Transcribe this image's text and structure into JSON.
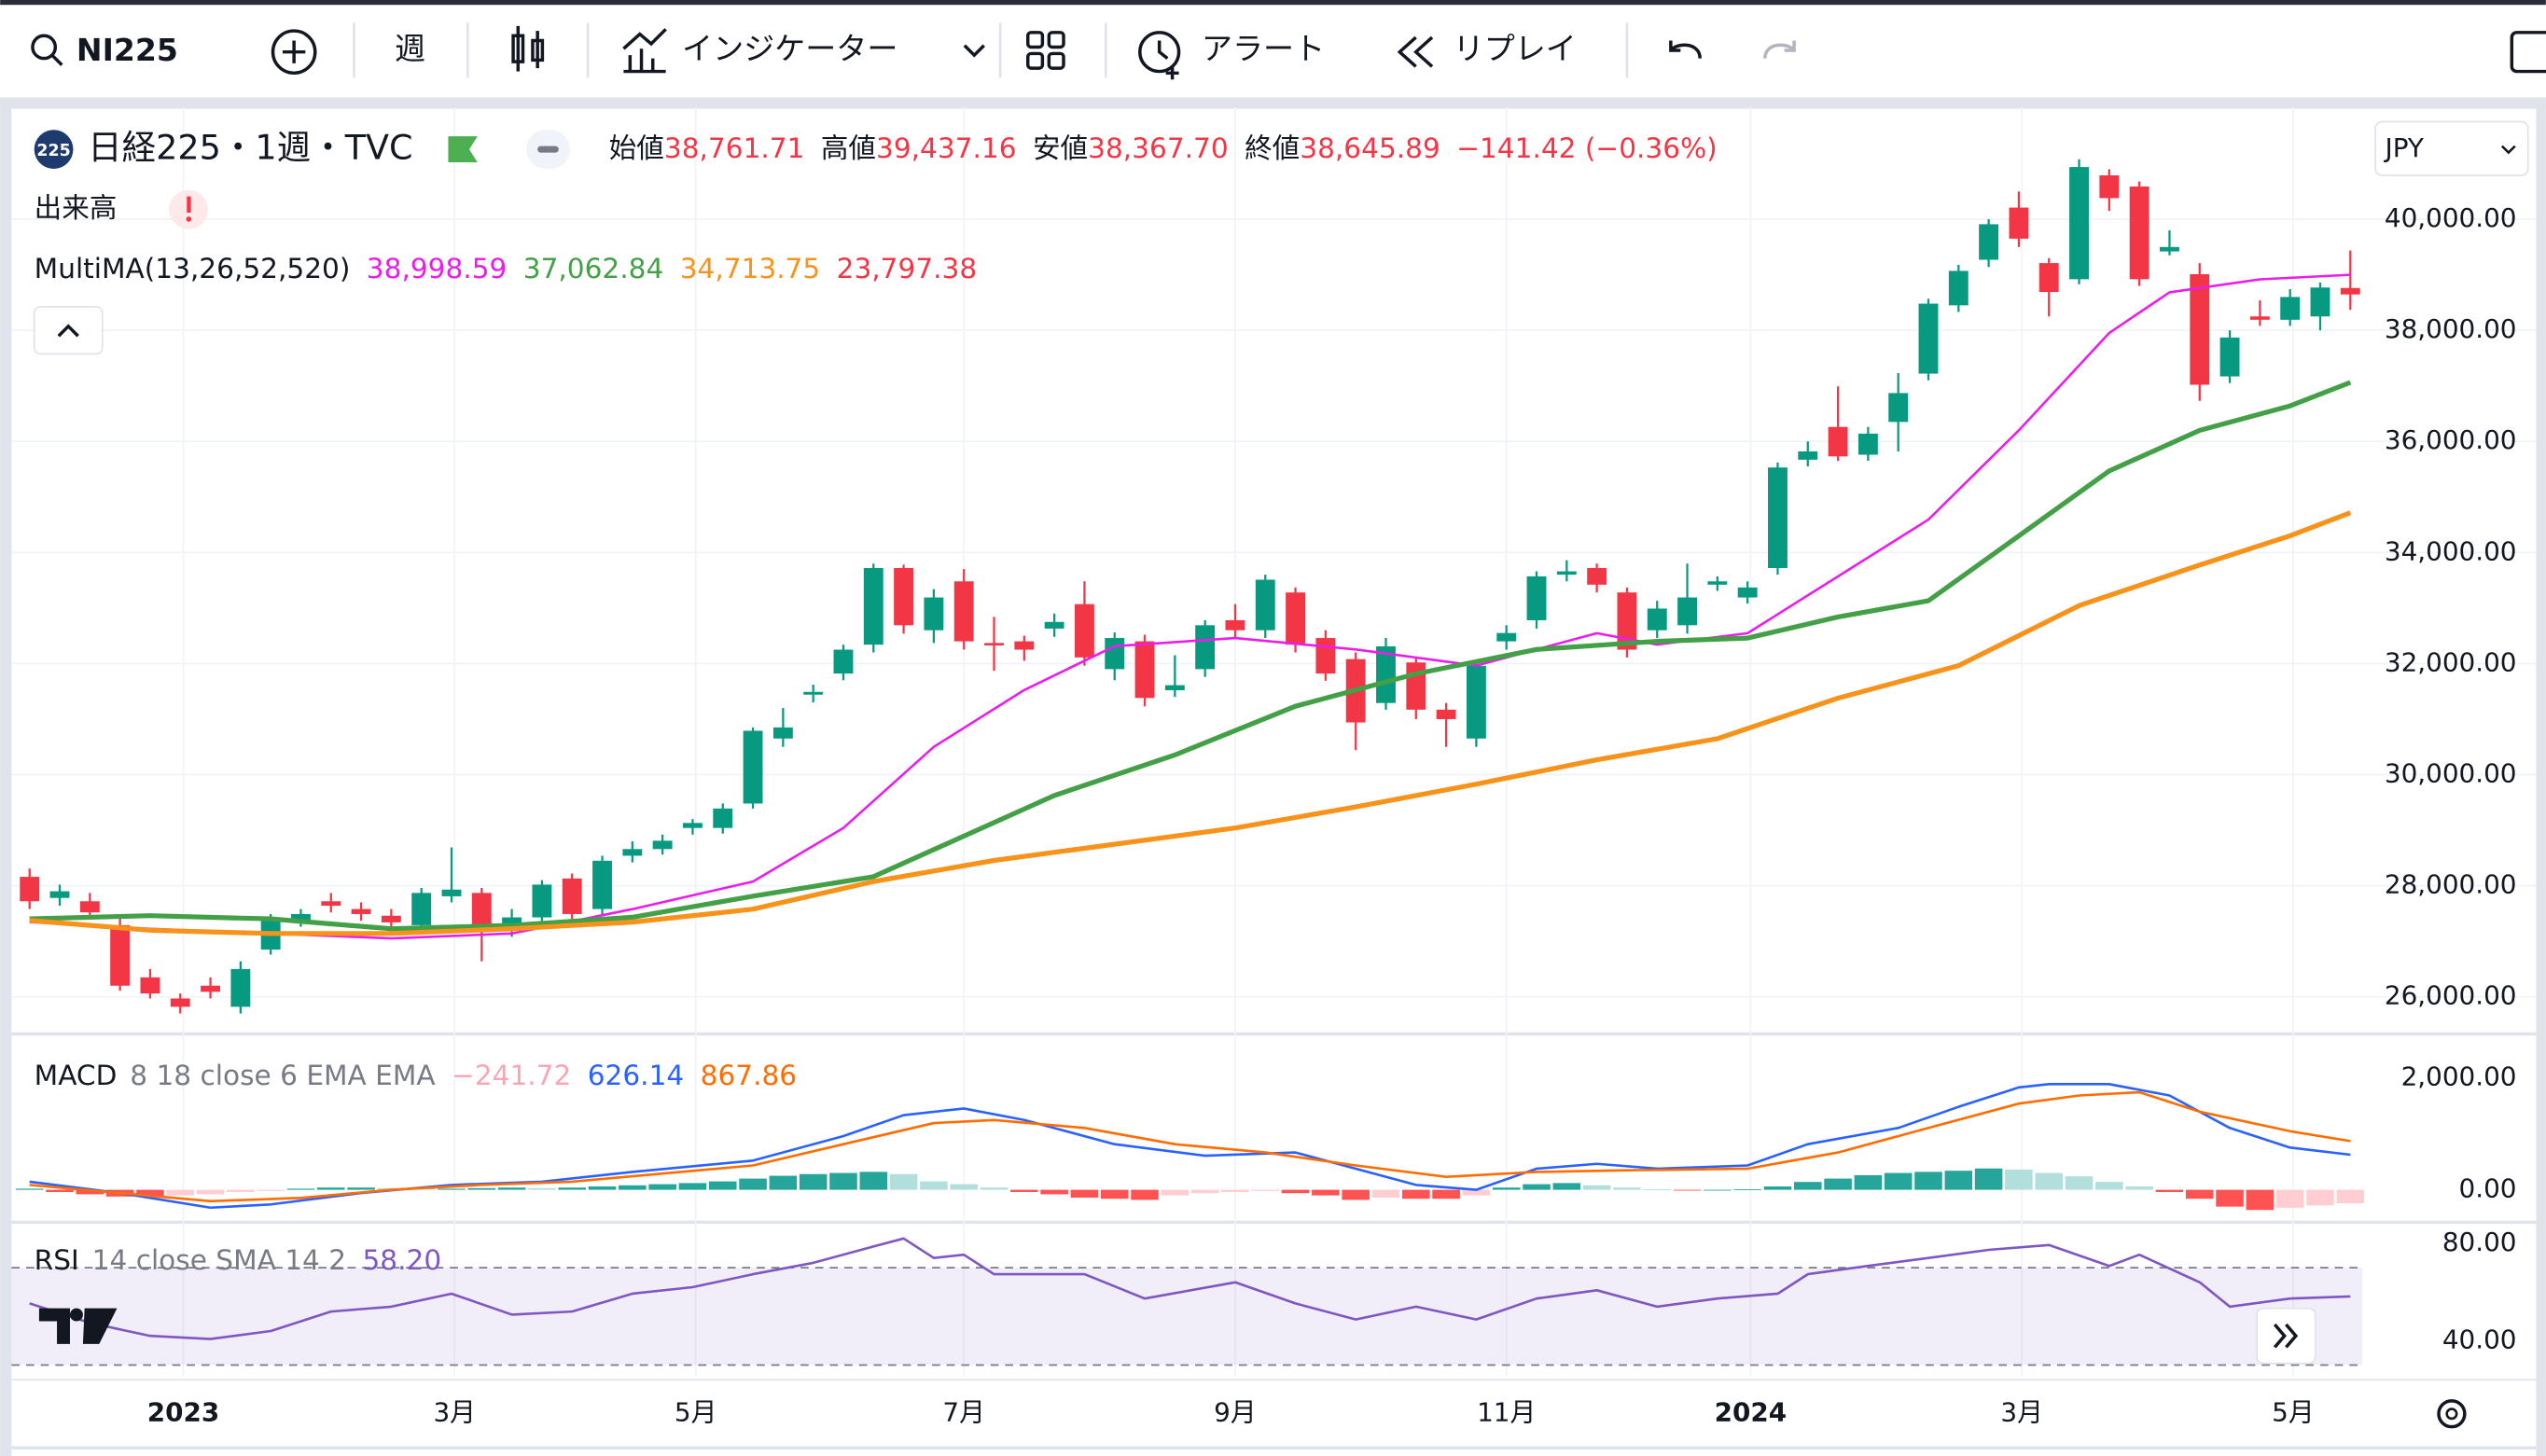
{
  "toolbar": {
    "symbol": "NI225",
    "interval": "週",
    "indicators": "インジケーター",
    "alert": "アラート",
    "replay": "リプレイ"
  },
  "chart_data": [
    {
      "type": "candlestick",
      "badge": "225",
      "title": "日経225・1週・TVC",
      "ohlc": [
        {
          "name": "始値",
          "value": "38,761.71"
        },
        {
          "name": "高値",
          "value": "39,437.16"
        },
        {
          "name": "安値",
          "value": "38,367.70"
        },
        {
          "name": "終値",
          "value": "38,645.89"
        }
      ],
      "change": "−141.42 (−0.36%)",
      "volume_label": "出来高",
      "currency": "JPY",
      "ma_title": "MultiMA(13,26,52,520)",
      "up_color": "#089981",
      "down_color": "#f23645",
      "grid": true,
      "xlim": [
        -0.6,
        77.4
      ],
      "xticks": [
        {
          "value": 5.1,
          "label": "2023"
        },
        {
          "value": 14.1,
          "label": "3月"
        },
        {
          "value": 22.1,
          "label": "5月"
        },
        {
          "value": 31.0,
          "label": "7月"
        },
        {
          "value": 40.0,
          "label": "9月"
        },
        {
          "value": 49.0,
          "label": "11月"
        },
        {
          "value": 57.1,
          "label": "2024"
        },
        {
          "value": 66.1,
          "label": "3月"
        },
        {
          "value": 75.1,
          "label": "5月"
        }
      ],
      "ylim": [
        25360,
        41960
      ],
      "yticks": [
        {
          "value": 40000,
          "label": "40,000.00"
        },
        {
          "value": 38000,
          "label": "38,000.00"
        },
        {
          "value": 36000,
          "label": "36,000.00"
        },
        {
          "value": 34000,
          "label": "34,000.00"
        },
        {
          "value": 32000,
          "label": "32,000.00"
        },
        {
          "value": 30000,
          "label": "30,000.00"
        },
        {
          "value": 28000,
          "label": "28,000.00"
        },
        {
          "value": 26000,
          "label": "26,000.00"
        }
      ],
      "candles": [
        [
          28160,
          28310,
          27580,
          27720
        ],
        [
          27780,
          28020,
          27640,
          27900
        ],
        [
          27720,
          27870,
          27430,
          27520
        ],
        [
          27290,
          27430,
          26110,
          26200
        ],
        [
          26350,
          26500,
          25970,
          26060
        ],
        [
          25970,
          26060,
          25700,
          25820
        ],
        [
          26200,
          26350,
          25970,
          26090
        ],
        [
          25820,
          26640,
          25700,
          26500
        ],
        [
          26850,
          27490,
          26760,
          27370
        ],
        [
          27340,
          27580,
          27260,
          27490
        ],
        [
          27720,
          27870,
          27520,
          27640
        ],
        [
          27580,
          27700,
          27370,
          27490
        ],
        [
          27460,
          27580,
          27200,
          27340
        ],
        [
          27290,
          27960,
          27200,
          27870
        ],
        [
          27810,
          28690,
          27700,
          27930
        ],
        [
          27870,
          27960,
          26640,
          27290
        ],
        [
          27230,
          27580,
          27080,
          27430
        ],
        [
          27430,
          28100,
          27340,
          28020
        ],
        [
          28130,
          28220,
          27400,
          27490
        ],
        [
          27580,
          28540,
          27490,
          28450
        ],
        [
          28540,
          28800,
          28420,
          28660
        ],
        [
          28660,
          28920,
          28560,
          28810
        ],
        [
          29040,
          29200,
          28920,
          29130
        ],
        [
          29040,
          29480,
          28940,
          29390
        ],
        [
          29480,
          30850,
          29390,
          30790
        ],
        [
          30650,
          31200,
          30500,
          30850
        ],
        [
          31440,
          31620,
          31300,
          31490
        ],
        [
          31820,
          32340,
          31700,
          32250
        ],
        [
          32340,
          33800,
          32200,
          33720
        ],
        [
          33720,
          33780,
          32540,
          32690
        ],
        [
          32600,
          33340,
          32370,
          33190
        ],
        [
          33480,
          33700,
          32250,
          32400
        ],
        [
          32370,
          32840,
          31870,
          32340
        ],
        [
          32400,
          32500,
          32050,
          32250
        ],
        [
          32630,
          32900,
          32480,
          32750
        ],
        [
          33070,
          33480,
          31960,
          32110
        ],
        [
          31900,
          32560,
          31700,
          32460
        ],
        [
          32400,
          32520,
          31230,
          31380
        ],
        [
          31520,
          32150,
          31400,
          31610
        ],
        [
          31900,
          32780,
          31760,
          32690
        ],
        [
          32780,
          33070,
          32460,
          32600
        ],
        [
          32600,
          33600,
          32460,
          33510
        ],
        [
          33280,
          33370,
          32200,
          32340
        ],
        [
          32460,
          32600,
          31690,
          31820
        ],
        [
          32080,
          32200,
          30440,
          30940
        ],
        [
          31290,
          32460,
          31170,
          32310
        ],
        [
          32020,
          32110,
          31000,
          31170
        ],
        [
          31170,
          31290,
          30500,
          31000
        ],
        [
          30650,
          32050,
          30500,
          31960
        ],
        [
          32400,
          32690,
          32250,
          32550
        ],
        [
          32780,
          33660,
          32630,
          33570
        ],
        [
          33600,
          33860,
          33480,
          33660
        ],
        [
          33720,
          33800,
          33280,
          33420
        ],
        [
          33280,
          33370,
          32110,
          32250
        ],
        [
          32600,
          33130,
          32460,
          32990
        ],
        [
          32690,
          33800,
          32540,
          33190
        ],
        [
          33420,
          33570,
          33310,
          33480
        ],
        [
          33190,
          33480,
          33080,
          33370
        ],
        [
          33720,
          35620,
          33600,
          35530
        ],
        [
          35670,
          36000,
          35550,
          35820
        ],
        [
          36260,
          36990,
          35650,
          35730
        ],
        [
          35760,
          36260,
          35650,
          36140
        ],
        [
          36350,
          37230,
          35820,
          36870
        ],
        [
          37220,
          38570,
          37100,
          38480
        ],
        [
          38450,
          39180,
          38330,
          39070
        ],
        [
          39270,
          40000,
          39140,
          39910
        ],
        [
          40210,
          40500,
          39500,
          39650
        ],
        [
          39210,
          39300,
          38250,
          38690
        ],
        [
          38920,
          41080,
          38830,
          40940
        ],
        [
          40790,
          40900,
          40150,
          40380
        ],
        [
          40590,
          40680,
          38800,
          38920
        ],
        [
          39420,
          39800,
          39350,
          39500
        ],
        [
          39010,
          39210,
          36730,
          37020
        ],
        [
          37170,
          38000,
          37050,
          37870
        ],
        [
          38250,
          38540,
          38080,
          38190
        ],
        [
          38190,
          38740,
          38080,
          38600
        ],
        [
          38250,
          38860,
          38000,
          38770
        ],
        [
          38761.71,
          39437.16,
          38367.7,
          38645.89
        ]
      ],
      "series": [
        {
          "color": "#e91ee9",
          "value_label": "38,998.59",
          "width": 1.5,
          "x": [
            0,
            4,
            8,
            12,
            16,
            20,
            24,
            27,
            30,
            33,
            36,
            40,
            44,
            48,
            52,
            54,
            57,
            60,
            63,
            66,
            69,
            71,
            74,
            77
          ],
          "values": [
            27343,
            27226,
            27139,
            27051,
            27139,
            27578,
            28074,
            29039,
            30500,
            31523,
            32313,
            32459,
            32254,
            31962,
            32546,
            32342,
            32546,
            33569,
            34592,
            36200,
            37954,
            38685,
            38918,
            38999
          ]
        },
        {
          "color": "#43a047",
          "value_label": "37,062.84",
          "width": 3,
          "x": [
            0,
            4,
            8,
            12,
            16,
            20,
            24,
            28,
            31,
            34,
            38,
            42,
            46,
            50,
            54,
            57,
            60,
            63,
            66,
            69,
            72,
            75,
            77
          ],
          "values": [
            27402,
            27460,
            27402,
            27226,
            27285,
            27431,
            27811,
            28162,
            28893,
            29623,
            30354,
            31231,
            31816,
            32254,
            32400,
            32459,
            32839,
            33131,
            34300,
            35469,
            36200,
            36638,
            37063
          ]
        },
        {
          "color": "#f7931a",
          "value_label": "34,713.75",
          "width": 3,
          "x": [
            0,
            4,
            8,
            12,
            16,
            20,
            24,
            28,
            32,
            36,
            40,
            44,
            48,
            52,
            56,
            60,
            64,
            68,
            72,
            75,
            77
          ],
          "values": [
            27373,
            27197,
            27139,
            27139,
            27226,
            27343,
            27578,
            28074,
            28454,
            28746,
            29039,
            29419,
            29828,
            30267,
            30646,
            31377,
            31962,
            33043,
            33774,
            34300,
            34714
          ]
        },
        {
          "color": "#f23645",
          "value_label": "23,797.38"
        }
      ]
    },
    {
      "type": "macd",
      "title": "MACD",
      "params": "8 18 close 6 EMA EMA",
      "ylim": [
        -550,
        2750
      ],
      "yticks": [
        {
          "value": 2000,
          "label": "2,000.00"
        },
        {
          "value": 0,
          "label": "0.00"
        }
      ],
      "histogram": {
        "value_label": "−241.72",
        "label_color": "#f7a7b4",
        "colors": [
          "#26a69a",
          "#b2dfdb",
          "#ff5252",
          "#ffcdd2"
        ],
        "values": [
          20,
          -40,
          -80,
          -120,
          -120,
          -100,
          -80,
          -40,
          -20,
          20,
          40,
          40,
          30,
          20,
          20,
          30,
          40,
          30,
          40,
          60,
          80,
          100,
          120,
          150,
          200,
          250,
          280,
          300,
          320,
          280,
          150,
          100,
          40,
          -40,
          -80,
          -140,
          -160,
          -180,
          -100,
          -60,
          -40,
          -20,
          -60,
          -100,
          -180,
          -140,
          -160,
          -160,
          -100,
          40,
          100,
          120,
          80,
          40,
          10,
          -10,
          0,
          10,
          60,
          140,
          200,
          260,
          300,
          320,
          340,
          380,
          360,
          300,
          240,
          140,
          60,
          -40,
          -160,
          -300,
          -360,
          -320,
          -280,
          -241.72
        ]
      },
      "series": [
        {
          "color": "#2962ff",
          "value_label": "626.14",
          "x": [
            0,
            3,
            6,
            8,
            11,
            14,
            17,
            20,
            24,
            27,
            29,
            31,
            33,
            36,
            39,
            42,
            44,
            46,
            48,
            50,
            52,
            54,
            57,
            59,
            62,
            64,
            66,
            67,
            69,
            71,
            73,
            75,
            77
          ],
          "values": [
            145,
            -58,
            -319,
            -261,
            -58,
            87,
            145,
            319,
            522,
            957,
            1333,
            1449,
            1246,
            812,
            609,
            667,
            377,
            87,
            0,
            377,
            464,
            377,
            435,
            812,
            1102,
            1478,
            1826,
            1884,
            1884,
            1681,
            1102,
            754,
            626.14
          ]
        },
        {
          "color": "#ff6d00",
          "value_label": "867.86",
          "x": [
            0,
            3,
            6,
            9,
            12,
            15,
            18,
            21,
            24,
            27,
            30,
            32,
            35,
            38,
            41,
            44,
            47,
            50,
            53,
            57,
            60,
            63,
            66,
            68,
            70,
            72,
            75,
            77
          ],
          "values": [
            87,
            -58,
            -203,
            -145,
            0,
            87,
            145,
            290,
            435,
            812,
            1189,
            1246,
            1102,
            812,
            667,
            435,
            232,
            319,
            348,
            377,
            667,
            1102,
            1536,
            1681,
            1739,
            1391,
            1044,
            867.86
          ]
        }
      ]
    },
    {
      "type": "rsi",
      "title": "RSI",
      "params": "14 close SMA 14 2",
      "ylim": [
        25.3,
        88
      ],
      "yticks": [
        {
          "value": 80,
          "label": "80.00"
        },
        {
          "value": 40,
          "label": "40.00"
        }
      ],
      "bands": [
        70,
        30
      ],
      "band_color": "#7e57c2",
      "series": [
        {
          "color": "#7e57c2",
          "value_label": "58.20",
          "x": [
            0,
            2,
            4,
            6,
            8,
            10,
            12,
            14,
            16,
            18,
            20,
            22,
            24,
            26,
            28,
            29,
            30,
            31,
            32,
            35,
            37,
            40,
            42,
            44,
            46,
            48,
            50,
            52,
            54,
            56,
            58,
            59,
            61,
            63,
            65,
            67,
            69,
            70,
            72,
            73,
            75,
            77
          ],
          "values": [
            55.3,
            47.3,
            42,
            40.7,
            44,
            52,
            54,
            59.3,
            50.7,
            52,
            59.3,
            62,
            67.3,
            72,
            78.7,
            82,
            74,
            75.3,
            67.3,
            67.3,
            57.3,
            64,
            55.3,
            48.7,
            54,
            48.7,
            57.3,
            60.7,
            54,
            57.3,
            59.3,
            67.3,
            70.7,
            74,
            77.3,
            79.3,
            70.7,
            75.3,
            64,
            54,
            57.3,
            58.2
          ]
        }
      ]
    }
  ]
}
